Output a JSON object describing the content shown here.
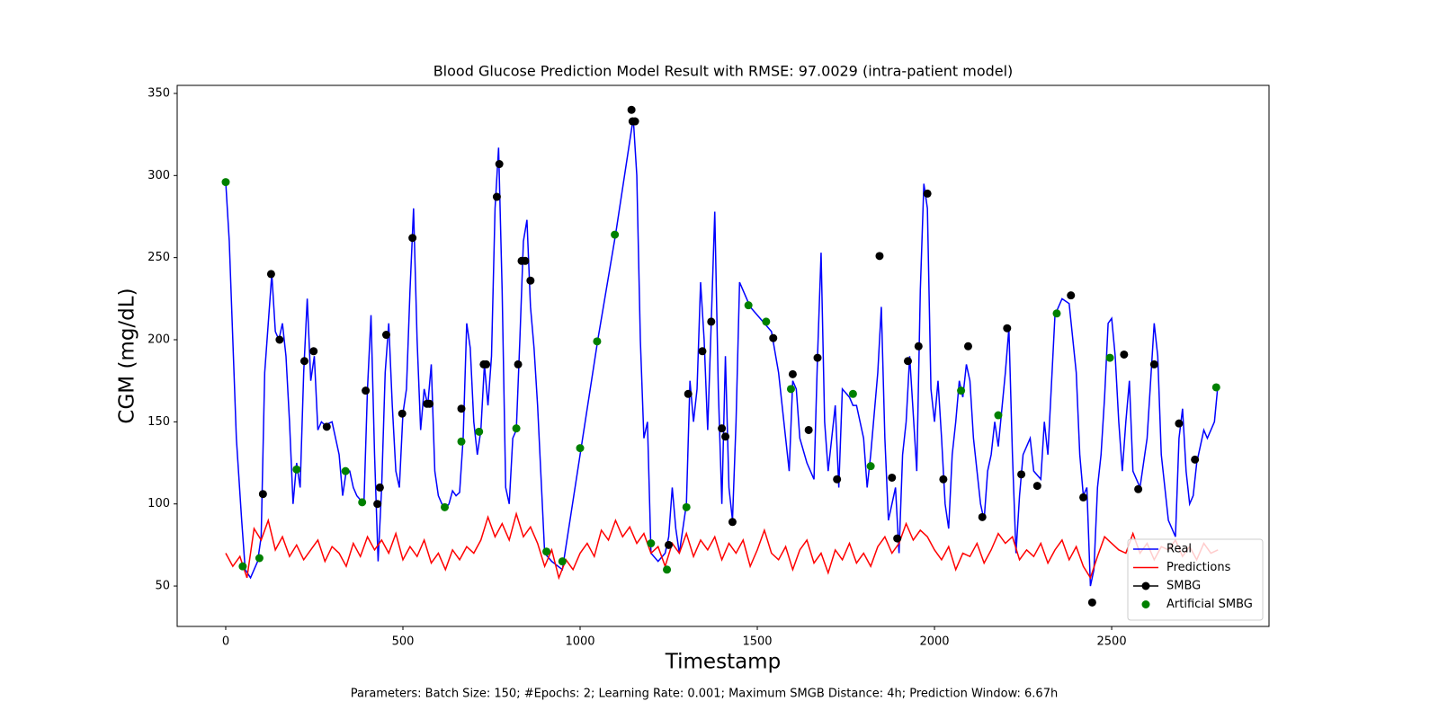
{
  "chart_data": {
    "type": "line",
    "title": "Blood Glucose Prediction Model Result with RMSE: 97.0029 (intra-patient model)",
    "x_label": "Timestamp",
    "y_label": "CGM (mg/dL)",
    "footer": "Parameters: Batch Size: 150; #Epochs: 2; Learning Rate: 0.001; Maximum SMGB Distance: 4h; Prediction Window: 6.67h",
    "xlim": [
      -137,
      2944
    ],
    "ylim": [
      25.4,
      354.9
    ],
    "xticks": [
      0,
      500,
      1000,
      1500,
      2000,
      2500
    ],
    "yticks": [
      50,
      100,
      150,
      200,
      250,
      300,
      350
    ],
    "grid": false,
    "legend": "lower right",
    "series": [
      {
        "name": "Real",
        "color": "#0000ff",
        "mode": "line",
        "x": [
          0,
          10,
          20,
          30,
          45,
          55,
          70,
          80,
          90,
          100,
          110,
          120,
          130,
          140,
          150,
          160,
          170,
          180,
          190,
          200,
          210,
          220,
          230,
          240,
          250,
          260,
          270,
          280,
          300,
          320,
          330,
          340,
          350,
          360,
          370,
          390,
          400,
          410,
          420,
          430,
          440,
          450,
          460,
          470,
          480,
          490,
          500,
          510,
          520,
          530,
          540,
          550,
          560,
          570,
          580,
          590,
          600,
          610,
          620,
          630,
          640,
          650,
          660,
          670,
          680,
          690,
          700,
          710,
          720,
          730,
          740,
          750,
          760,
          770,
          780,
          790,
          800,
          810,
          820,
          830,
          840,
          850,
          860,
          870,
          880,
          890,
          900,
          920,
          950,
          1000,
          1050,
          1100,
          1150,
          1160,
          1170,
          1180,
          1190,
          1200,
          1220,
          1240,
          1250,
          1260,
          1270,
          1280,
          1300,
          1310,
          1320,
          1330,
          1340,
          1350,
          1360,
          1370,
          1380,
          1390,
          1400,
          1410,
          1420,
          1430,
          1440,
          1450,
          1480,
          1500,
          1520,
          1540,
          1560,
          1580,
          1590,
          1600,
          1610,
          1620,
          1640,
          1660,
          1670,
          1680,
          1690,
          1700,
          1720,
          1730,
          1740,
          1760,
          1770,
          1780,
          1800,
          1810,
          1820,
          1840,
          1850,
          1860,
          1870,
          1880,
          1890,
          1900,
          1910,
          1920,
          1930,
          1950,
          1960,
          1970,
          1980,
          1990,
          2000,
          2010,
          2020,
          2030,
          2040,
          2050,
          2060,
          2070,
          2080,
          2090,
          2100,
          2110,
          2130,
          2140,
          2150,
          2160,
          2170,
          2180,
          2200,
          2210,
          2220,
          2230,
          2240,
          2250,
          2270,
          2280,
          2300,
          2310,
          2320,
          2340,
          2360,
          2380,
          2400,
          2410,
          2420,
          2430,
          2440,
          2450,
          2460,
          2470,
          2480,
          2490,
          2500,
          2510,
          2520,
          2530,
          2540,
          2550,
          2560,
          2580,
          2600,
          2620,
          2630,
          2640,
          2660,
          2680,
          2690,
          2700,
          2710,
          2720,
          2730,
          2740,
          2760,
          2770,
          2790,
          2800
        ],
        "values": [
          296,
          260,
          200,
          140,
          90,
          60,
          55,
          60,
          65,
          80,
          180,
          210,
          240,
          205,
          200,
          210,
          190,
          150,
          100,
          125,
          110,
          180,
          225,
          175,
          190,
          145,
          150,
          148,
          150,
          130,
          105,
          120,
          120,
          110,
          105,
          100,
          170,
          215,
          130,
          65,
          110,
          180,
          210,
          160,
          120,
          110,
          155,
          170,
          230,
          280,
          200,
          145,
          170,
          160,
          185,
          120,
          105,
          100,
          97,
          100,
          108,
          105,
          107,
          140,
          210,
          195,
          150,
          130,
          145,
          185,
          160,
          190,
          280,
          317,
          230,
          110,
          100,
          140,
          145,
          200,
          260,
          273,
          220,
          195,
          160,
          115,
          70,
          65,
          60,
          130,
          200,
          264,
          335,
          300,
          200,
          140,
          150,
          70,
          65,
          70,
          80,
          110,
          85,
          70,
          100,
          175,
          150,
          170,
          235,
          200,
          145,
          210,
          278,
          170,
          100,
          190,
          110,
          90,
          150,
          235,
          220,
          215,
          210,
          205,
          180,
          140,
          120,
          175,
          170,
          140,
          125,
          115,
          190,
          253,
          150,
          120,
          160,
          110,
          170,
          165,
          160,
          160,
          140,
          110,
          130,
          180,
          220,
          140,
          90,
          100,
          110,
          70,
          130,
          150,
          190,
          120,
          230,
          295,
          280,
          170,
          150,
          175,
          140,
          100,
          85,
          130,
          150,
          175,
          165,
          185,
          175,
          140,
          100,
          90,
          120,
          130,
          150,
          135,
          180,
          207,
          130,
          70,
          105,
          130,
          140,
          120,
          115,
          150,
          130,
          215,
          225,
          222,
          180,
          130,
          105,
          110,
          50,
          60,
          110,
          130,
          165,
          210,
          213,
          190,
          150,
          120,
          150,
          175,
          120,
          110,
          140,
          210,
          190,
          130,
          90,
          80,
          140,
          158,
          120,
          100,
          105,
          125,
          145,
          140,
          150,
          173
        ]
      },
      {
        "name": "Predictions",
        "color": "#ff0000",
        "mode": "line",
        "x": [
          0,
          20,
          40,
          60,
          80,
          100,
          120,
          140,
          160,
          180,
          200,
          220,
          240,
          260,
          280,
          300,
          320,
          340,
          360,
          380,
          400,
          420,
          440,
          460,
          480,
          500,
          520,
          540,
          560,
          580,
          600,
          620,
          640,
          660,
          680,
          700,
          720,
          740,
          760,
          780,
          800,
          820,
          840,
          860,
          880,
          900,
          920,
          940,
          960,
          980,
          1000,
          1020,
          1040,
          1060,
          1080,
          1100,
          1120,
          1140,
          1160,
          1180,
          1200,
          1220,
          1240,
          1260,
          1280,
          1300,
          1320,
          1340,
          1360,
          1380,
          1400,
          1420,
          1440,
          1460,
          1480,
          1500,
          1520,
          1540,
          1560,
          1580,
          1600,
          1620,
          1640,
          1660,
          1680,
          1700,
          1720,
          1740,
          1760,
          1780,
          1800,
          1820,
          1840,
          1860,
          1880,
          1900,
          1920,
          1940,
          1960,
          1980,
          2000,
          2020,
          2040,
          2060,
          2080,
          2100,
          2120,
          2140,
          2160,
          2180,
          2200,
          2220,
          2240,
          2260,
          2280,
          2300,
          2320,
          2340,
          2360,
          2380,
          2400,
          2420,
          2440,
          2460,
          2480,
          2500,
          2520,
          2540,
          2560,
          2580,
          2600,
          2620,
          2640,
          2660,
          2680,
          2700,
          2720,
          2740,
          2760,
          2780,
          2800
        ],
        "values": [
          70,
          62,
          68,
          55,
          85,
          78,
          90,
          72,
          80,
          68,
          75,
          66,
          72,
          78,
          65,
          74,
          70,
          62,
          76,
          68,
          80,
          72,
          78,
          70,
          82,
          66,
          74,
          68,
          78,
          64,
          70,
          60,
          72,
          66,
          74,
          70,
          78,
          92,
          80,
          88,
          78,
          94,
          80,
          86,
          76,
          62,
          72,
          55,
          66,
          60,
          70,
          76,
          68,
          84,
          78,
          90,
          80,
          86,
          76,
          82,
          70,
          74,
          62,
          76,
          70,
          82,
          68,
          78,
          72,
          80,
          66,
          76,
          70,
          78,
          62,
          72,
          84,
          70,
          66,
          74,
          60,
          72,
          78,
          64,
          70,
          58,
          72,
          66,
          76,
          64,
          70,
          62,
          74,
          80,
          70,
          76,
          88,
          78,
          84,
          80,
          72,
          66,
          74,
          60,
          70,
          68,
          76,
          64,
          72,
          82,
          76,
          80,
          66,
          72,
          68,
          76,
          64,
          72,
          78,
          66,
          74,
          62,
          55,
          68,
          80,
          76,
          72,
          70,
          82,
          70,
          76,
          66,
          74,
          72,
          78,
          68,
          74,
          66,
          76,
          70,
          72
        ]
      },
      {
        "name": "SMBG",
        "color": "#000000",
        "mode": "markers",
        "legend_line": true,
        "x": [
          105,
          128,
          152,
          222,
          248,
          285,
          395,
          428,
          435,
          453,
          498,
          527,
          568,
          575,
          665,
          728,
          735,
          765,
          772,
          825,
          835,
          845,
          860,
          1145,
          1148,
          1155,
          1250,
          1305,
          1345,
          1370,
          1400,
          1410,
          1430,
          1545,
          1600,
          1645,
          1670,
          1725,
          1845,
          1880,
          1895,
          1925,
          1955,
          1980,
          2025,
          2095,
          2135,
          2205,
          2245,
          2290,
          2385,
          2420,
          2445,
          2535,
          2575,
          2620,
          2690,
          2735
        ],
        "values": [
          106,
          240,
          200,
          187,
          193,
          147,
          169,
          100,
          110,
          203,
          155,
          262,
          161,
          161,
          158,
          185,
          185,
          287,
          307,
          185,
          248,
          248,
          236,
          340,
          333,
          333,
          75,
          167,
          193,
          211,
          146,
          141,
          89,
          201,
          179,
          145,
          189,
          115,
          251,
          116,
          79,
          187,
          196,
          289,
          115,
          196,
          92,
          207,
          118,
          111,
          227,
          104,
          40,
          191,
          109,
          185,
          149,
          127
        ]
      },
      {
        "name": "Artificial SMBG",
        "color": "#008000",
        "mode": "markers",
        "legend_line": false,
        "x": [
          0,
          48,
          95,
          200,
          338,
          385,
          618,
          665,
          715,
          820,
          905,
          950,
          1000,
          1048,
          1098,
          1200,
          1245,
          1300,
          1475,
          1525,
          1595,
          1770,
          1820,
          2075,
          2180,
          2345,
          2495,
          2795
        ],
        "values": [
          296,
          62,
          67,
          121,
          120,
          101,
          98,
          138,
          144,
          146,
          71,
          65,
          134,
          199,
          264,
          76,
          60,
          98,
          221,
          211,
          170,
          167,
          123,
          169,
          154,
          216,
          189,
          171
        ]
      }
    ]
  }
}
